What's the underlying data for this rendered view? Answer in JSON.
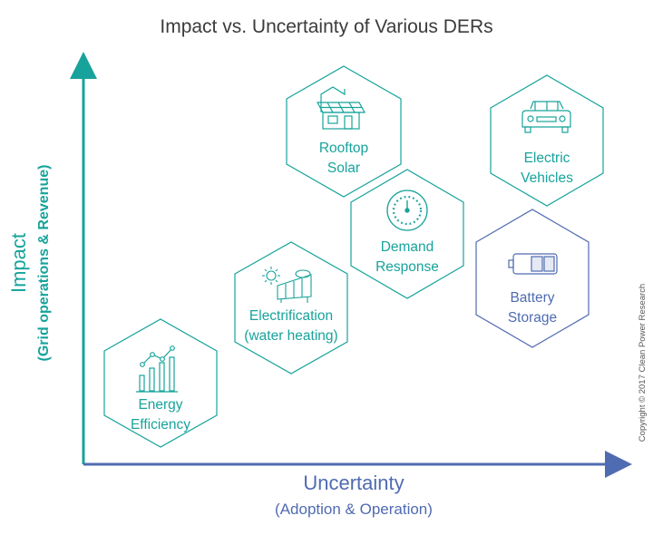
{
  "title": "Impact vs. Uncertainty of Various DERs",
  "x_axis": {
    "title": "Uncertainty",
    "subtitle": "(Adoption & Operation)"
  },
  "y_axis": {
    "title": "Impact",
    "subtitle": "(Grid operations & Revenue)"
  },
  "copyright": "Copyright © 2017 Clean Power Research",
  "colors": {
    "teal": "#17a39b",
    "blue": "#4f6bb1"
  },
  "nodes": [
    {
      "id": "energy-efficiency",
      "line1": "Energy",
      "line2": "Efficiency",
      "icon": "bar-chart-icon",
      "color": "teal"
    },
    {
      "id": "electrification",
      "line1": "Electrification",
      "line2": "(water heating)",
      "icon": "solar-water-heater-icon",
      "color": "teal"
    },
    {
      "id": "rooftop-solar",
      "line1": "Rooftop",
      "line2": "Solar",
      "icon": "house-solar-panel-icon",
      "color": "teal"
    },
    {
      "id": "demand-response",
      "line1": "Demand",
      "line2": "Response",
      "icon": "gauge-dial-icon",
      "color": "teal"
    },
    {
      "id": "electric-vehicles",
      "line1": "Electric",
      "line2": "Vehicles",
      "icon": "car-icon",
      "color": "teal"
    },
    {
      "id": "battery-storage",
      "line1": "Battery",
      "line2": "Storage",
      "icon": "battery-icon",
      "color": "blue"
    }
  ]
}
